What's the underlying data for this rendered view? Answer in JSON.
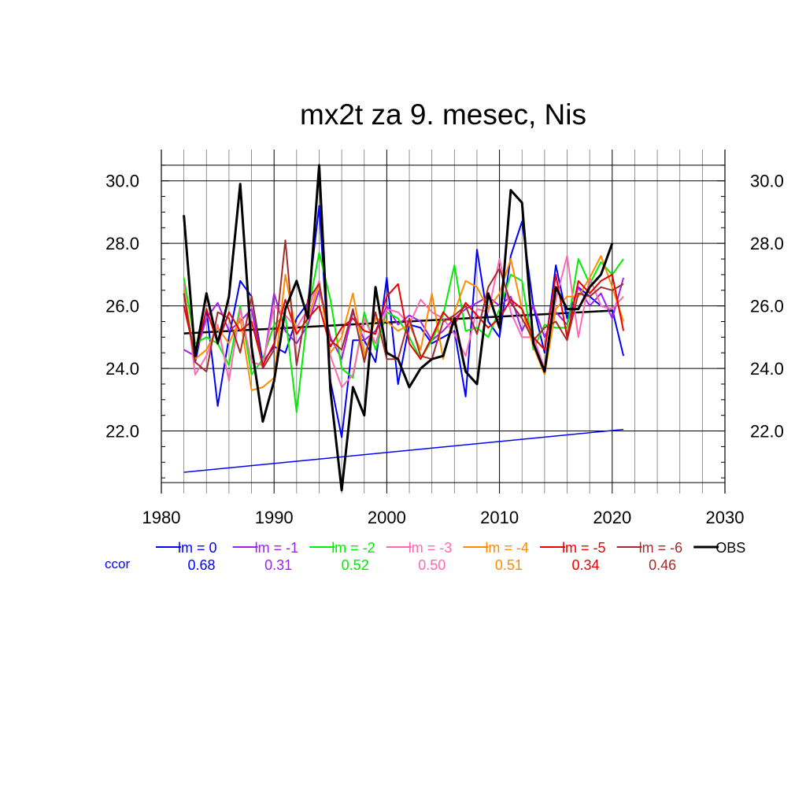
{
  "chart_data": {
    "type": "line",
    "title": "mx2t za 9. mesec, Nis",
    "xlim": [
      1980,
      2030
    ],
    "ylim": [
      20.0,
      31.0
    ],
    "x_ticks": [
      1980,
      1990,
      2000,
      2010,
      2020,
      2030
    ],
    "y_ticks": [
      22.0,
      24.0,
      26.0,
      28.0,
      30.0
    ],
    "grid": true,
    "legend_position": "bottom",
    "ccor_label": "ccor",
    "ccor_color": "#0000ff",
    "series": [
      {
        "name": "lm = 0",
        "color": "#0000ff",
        "ccor": "0.68",
        "x": [
          1982,
          1983,
          1984,
          1985,
          1986,
          1987,
          1988,
          1989,
          1990,
          1991,
          1992,
          1993,
          1994,
          1995,
          1996,
          1997,
          1998,
          1999,
          2000,
          2001,
          2002,
          2003,
          2004,
          2005,
          2006,
          2007,
          2008,
          2009,
          2010,
          2011,
          2012,
          2013,
          2014,
          2015,
          2016,
          2017,
          2018,
          2019,
          2020,
          2021
        ],
        "values": [
          26.4,
          24.2,
          25.9,
          22.8,
          25.0,
          26.8,
          26.3,
          24.2,
          24.7,
          24.5,
          25.6,
          26.1,
          29.2,
          23.6,
          21.8,
          24.9,
          24.9,
          24.2,
          26.9,
          23.5,
          25.4,
          25.3,
          24.8,
          25.0,
          25.2,
          23.1,
          27.8,
          25.5,
          25.0,
          27.6,
          28.7,
          26.0,
          24.5,
          27.3,
          25.6,
          26.6,
          26.3,
          26.0,
          25.9,
          24.4
        ],
        "trend": [
          20.68,
          22.05
        ]
      },
      {
        "name": "lm = -1",
        "color": "#a020f0",
        "ccor": "0.31",
        "x": [
          1982,
          1983,
          1984,
          1985,
          1986,
          1987,
          1988,
          1989,
          1990,
          1991,
          1992,
          1993,
          1994,
          1995,
          1996,
          1997,
          1998,
          1999,
          2000,
          2001,
          2002,
          2003,
          2004,
          2005,
          2006,
          2007,
          2008,
          2009,
          2010,
          2011,
          2012,
          2013,
          2014,
          2015,
          2016,
          2017,
          2018,
          2019,
          2020,
          2021
        ],
        "values": [
          24.6,
          24.4,
          25.6,
          26.1,
          25.2,
          25.5,
          25.9,
          24.0,
          26.4,
          25.2,
          24.8,
          25.4,
          26.5,
          25.0,
          24.3,
          25.8,
          24.9,
          25.2,
          26.0,
          25.4,
          25.7,
          25.5,
          24.9,
          25.2,
          25.6,
          25.9,
          26.1,
          26.3,
          26.0,
          26.3,
          25.2,
          26.0,
          25.0,
          25.8,
          25.4,
          26.6,
          26.0,
          26.4,
          25.6,
          26.9
        ],
        "trend": null
      },
      {
        "name": "lm = -2",
        "color": "#00ee00",
        "ccor": "0.52",
        "x": [
          1982,
          1983,
          1984,
          1985,
          1986,
          1987,
          1988,
          1989,
          1990,
          1991,
          1992,
          1993,
          1994,
          1995,
          1996,
          1997,
          1998,
          1999,
          2000,
          2001,
          2002,
          2003,
          2004,
          2005,
          2006,
          2007,
          2008,
          2009,
          2010,
          2011,
          2012,
          2013,
          2014,
          2015,
          2016,
          2017,
          2018,
          2019,
          2020,
          2021
        ],
        "values": [
          26.9,
          24.8,
          25.0,
          24.8,
          24.1,
          26.0,
          23.8,
          24.3,
          25.4,
          25.7,
          22.6,
          25.8,
          27.7,
          26.2,
          24.0,
          23.7,
          25.8,
          24.6,
          25.8,
          25.6,
          25.0,
          24.3,
          24.9,
          25.7,
          27.3,
          25.2,
          25.3,
          25.0,
          25.9,
          27.0,
          26.8,
          24.6,
          25.4,
          25.3,
          25.3,
          27.5,
          26.7,
          27.4,
          27.0,
          27.5
        ],
        "trend": null
      },
      {
        "name": "lm = -3",
        "color": "#ff69b4",
        "ccor": "0.50",
        "x": [
          1982,
          1983,
          1984,
          1985,
          1986,
          1987,
          1988,
          1989,
          1990,
          1991,
          1992,
          1993,
          1994,
          1995,
          1996,
          1997,
          1998,
          1999,
          2000,
          2001,
          2002,
          2003,
          2004,
          2005,
          2006,
          2007,
          2008,
          2009,
          2010,
          2011,
          2012,
          2013,
          2014,
          2015,
          2016,
          2017,
          2018,
          2019,
          2020,
          2021
        ],
        "values": [
          26.7,
          23.8,
          24.4,
          25.4,
          23.6,
          25.9,
          24.2,
          24.1,
          26.0,
          25.7,
          25.3,
          25.9,
          26.8,
          24.4,
          23.4,
          23.8,
          25.6,
          24.8,
          25.9,
          25.8,
          25.4,
          26.2,
          25.8,
          25.6,
          25.1,
          24.4,
          25.9,
          25.8,
          27.5,
          25.8,
          25.0,
          25.0,
          24.0,
          26.2,
          27.6,
          25.0,
          26.9,
          26.0,
          25.9,
          26.3
        ],
        "trend": null
      },
      {
        "name": "lm = -4",
        "color": "#ff8c00",
        "ccor": "0.51",
        "x": [
          1982,
          1983,
          1984,
          1985,
          1986,
          1987,
          1988,
          1989,
          1990,
          1991,
          1992,
          1993,
          1994,
          1995,
          1996,
          1997,
          1998,
          1999,
          2000,
          2001,
          2002,
          2003,
          2004,
          2005,
          2006,
          2007,
          2008,
          2009,
          2010,
          2011,
          2012,
          2013,
          2014,
          2015,
          2016,
          2017,
          2018,
          2019,
          2020,
          2021
        ],
        "values": [
          26.5,
          24.3,
          24.6,
          25.3,
          24.8,
          25.6,
          23.3,
          23.4,
          23.7,
          27.0,
          25.1,
          25.6,
          26.7,
          24.5,
          25.0,
          26.4,
          24.4,
          25.6,
          25.5,
          25.2,
          25.4,
          24.6,
          26.4,
          24.3,
          25.8,
          26.8,
          26.6,
          25.9,
          26.4,
          27.5,
          25.9,
          24.7,
          23.8,
          25.9,
          26.3,
          26.3,
          26.9,
          27.6,
          26.6,
          25.5
        ],
        "trend": null
      },
      {
        "name": "lm = -5",
        "color": "#ee0000",
        "ccor": "0.34",
        "x": [
          1982,
          1983,
          1984,
          1985,
          1986,
          1987,
          1988,
          1989,
          1990,
          1991,
          1992,
          1993,
          1994,
          1995,
          1996,
          1997,
          1998,
          1999,
          2000,
          2001,
          2002,
          2003,
          2004,
          2005,
          2006,
          2007,
          2008,
          2009,
          2010,
          2011,
          2012,
          2013,
          2014,
          2015,
          2016,
          2017,
          2018,
          2019,
          2020,
          2021
        ],
        "values": [
          26.0,
          24.4,
          25.9,
          24.8,
          25.8,
          25.2,
          25.5,
          24.1,
          24.8,
          26.2,
          25.1,
          25.6,
          26.0,
          24.7,
          25.3,
          25.6,
          25.2,
          25.1,
          26.3,
          26.7,
          24.8,
          24.3,
          25.0,
          25.8,
          25.4,
          26.1,
          25.7,
          25.3,
          25.6,
          26.2,
          25.9,
          25.0,
          24.6,
          27.0,
          25.0,
          26.8,
          26.4,
          26.8,
          27.0,
          25.2
        ],
        "trend": null
      },
      {
        "name": "lm = -6",
        "color": "#a52a2a",
        "ccor": "0.46",
        "x": [
          1982,
          1983,
          1984,
          1985,
          1986,
          1987,
          1988,
          1989,
          1990,
          1991,
          1992,
          1993,
          1994,
          1995,
          1996,
          1997,
          1998,
          1999,
          2000,
          2001,
          2002,
          2003,
          2004,
          2005,
          2006,
          2007,
          2008,
          2009,
          2010,
          2011,
          2012,
          2013,
          2014,
          2015,
          2016,
          2017,
          2018,
          2019,
          2020,
          2021
        ],
        "values": [
          26.4,
          24.2,
          23.9,
          25.8,
          25.6,
          24.5,
          26.3,
          24.0,
          24.6,
          28.1,
          24.1,
          26.2,
          26.7,
          24.9,
          24.6,
          25.9,
          24.2,
          25.8,
          24.3,
          24.3,
          25.6,
          24.4,
          24.3,
          25.5,
          25.7,
          26.0,
          25.1,
          26.6,
          27.2,
          26.1,
          25.6,
          24.9,
          25.3,
          25.5,
          24.9,
          26.4,
          26.3,
          26.6,
          26.5,
          26.7
        ],
        "trend": null
      },
      {
        "name": "OBS",
        "color": "#000000",
        "ccor": "",
        "x": [
          1982,
          1983,
          1984,
          1985,
          1986,
          1987,
          1988,
          1989,
          1990,
          1991,
          1992,
          1993,
          1994,
          1995,
          1996,
          1997,
          1998,
          1999,
          2000,
          2001,
          2002,
          2003,
          2004,
          2005,
          2006,
          2007,
          2008,
          2009,
          2010,
          2011,
          2012,
          2013,
          2014,
          2015,
          2016,
          2017,
          2018,
          2019,
          2020
        ],
        "values": [
          28.9,
          24.4,
          26.4,
          24.8,
          26.3,
          29.9,
          24.7,
          22.3,
          23.6,
          25.9,
          26.8,
          25.6,
          30.5,
          23.3,
          20.1,
          23.4,
          22.5,
          26.6,
          24.5,
          24.3,
          23.4,
          24.0,
          24.3,
          24.4,
          25.6,
          23.9,
          23.5,
          26.4,
          25.3,
          29.7,
          29.3,
          24.8,
          23.9,
          26.6,
          25.9,
          25.9,
          26.6,
          27.0,
          28.0
        ],
        "trend": [
          25.12,
          25.85
        ]
      }
    ]
  }
}
